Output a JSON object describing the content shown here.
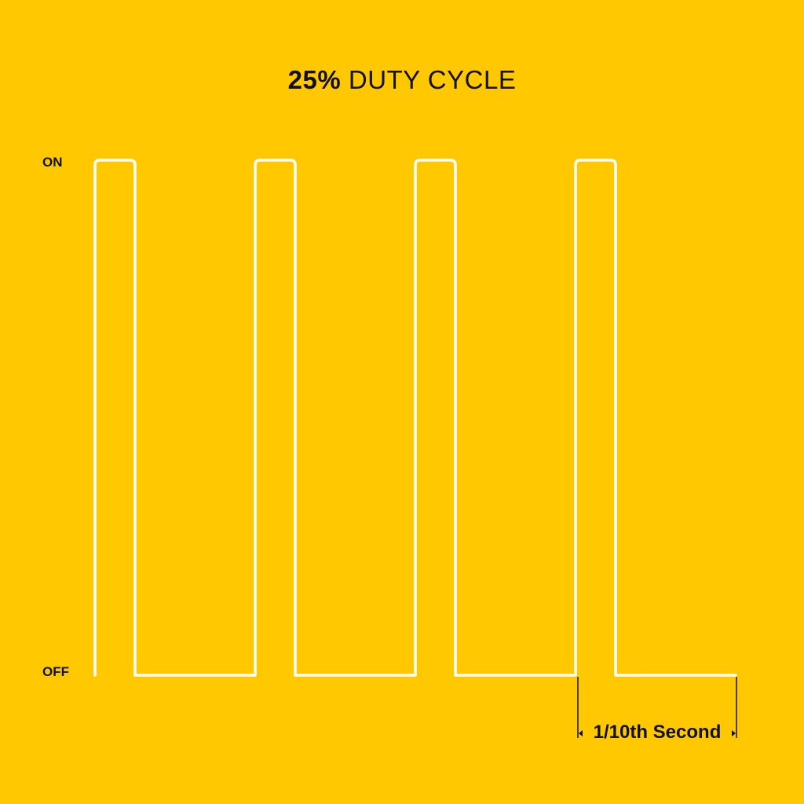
{
  "title": {
    "bold": "25%",
    "light": "DUTY CYCLE"
  },
  "labels": {
    "on": "ON",
    "off": "OFF",
    "period": "1/10th Second"
  },
  "signal": {
    "pulses": 4,
    "duty_cycle": 0.25,
    "trailing_off_fraction": 0.75
  },
  "colors": {
    "background": "#FFC800",
    "wave": "#FFFFFF",
    "text": "#111111"
  }
}
